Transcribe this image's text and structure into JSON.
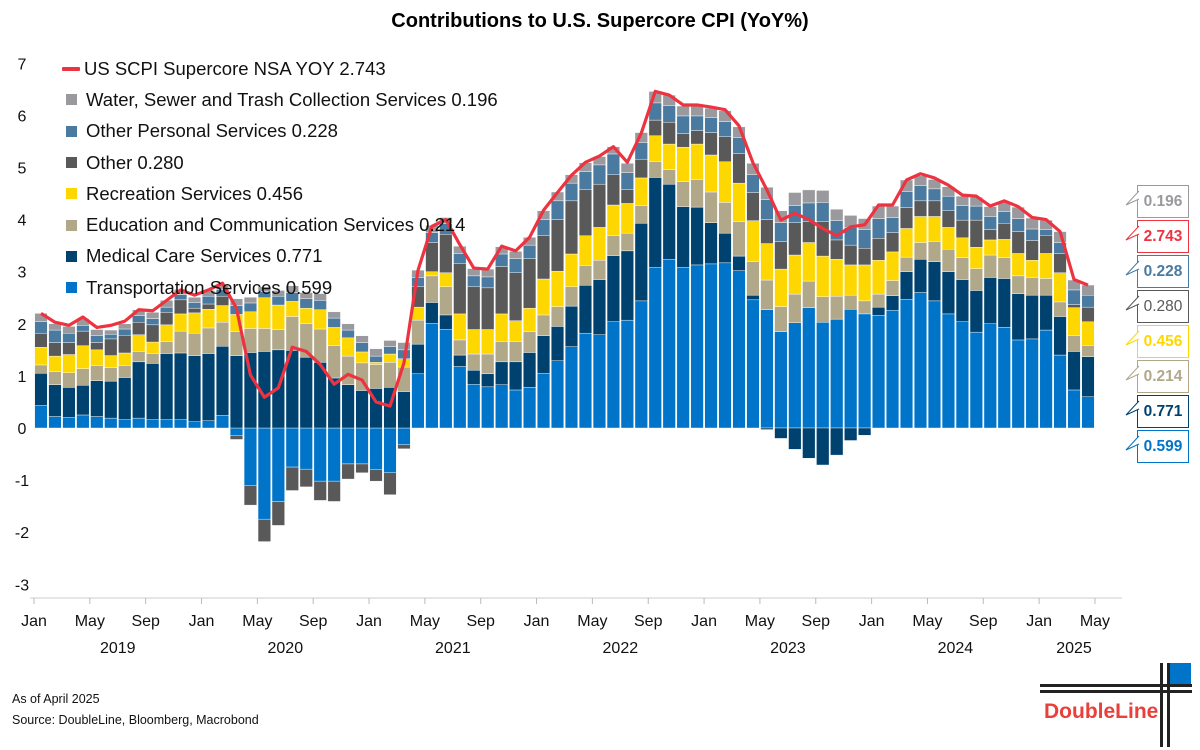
{
  "title": "Contributions to U.S. Supercore CPI (YoY%)",
  "footnote_asof": "As of April 2025",
  "footnote_source": "Source: DoubleLine, Bloomberg, Macrobond",
  "logo_text": "DoubleLine",
  "chart_data": {
    "type": "bar",
    "stacked": true,
    "title": "Contributions to U.S. Supercore CPI (YoY%)",
    "xlabel": "",
    "ylabel": "",
    "ylim": [
      -3,
      7
    ],
    "y_ticks": [
      "7",
      "6",
      "5",
      "4",
      "3",
      "2",
      "1",
      "0",
      "-1",
      "-2",
      "-3"
    ],
    "x_start": "2019-01",
    "x_end": "2025-04",
    "x_ticks": [
      {
        "month_index": 0,
        "label": "Jan"
      },
      {
        "month_index": 4,
        "label": "May"
      },
      {
        "month_index": 8,
        "label": "Sep"
      },
      {
        "month_index": 12,
        "label": "Jan"
      },
      {
        "month_index": 16,
        "label": "May"
      },
      {
        "month_index": 20,
        "label": "Sep"
      },
      {
        "month_index": 24,
        "label": "Jan"
      },
      {
        "month_index": 28,
        "label": "May"
      },
      {
        "month_index": 32,
        "label": "Sep"
      },
      {
        "month_index": 36,
        "label": "Jan"
      },
      {
        "month_index": 40,
        "label": "May"
      },
      {
        "month_index": 44,
        "label": "Sep"
      },
      {
        "month_index": 48,
        "label": "Jan"
      },
      {
        "month_index": 52,
        "label": "May"
      },
      {
        "month_index": 56,
        "label": "Sep"
      },
      {
        "month_index": 60,
        "label": "Jan"
      },
      {
        "month_index": 64,
        "label": "May"
      },
      {
        "month_index": 68,
        "label": "Sep"
      },
      {
        "month_index": 72,
        "label": "Jan"
      },
      {
        "month_index": 76,
        "label": "May"
      }
    ],
    "year_labels": [
      {
        "center_month_index": 5.5,
        "label": "2019"
      },
      {
        "center_month_index": 17.5,
        "label": "2020"
      },
      {
        "center_month_index": 29.5,
        "label": "2021"
      },
      {
        "center_month_index": 41.5,
        "label": "2022"
      },
      {
        "center_month_index": 53.5,
        "label": "2023"
      },
      {
        "center_month_index": 65.5,
        "label": "2024"
      },
      {
        "center_month_index": 74,
        "label": "2025"
      }
    ],
    "legend_position": "top-left",
    "line": {
      "name": "US SCPI Supercore NSA YOY",
      "latest": "2.743",
      "legend_label": "US SCPI Supercore NSA YOY 2.743",
      "color": "#ee3340",
      "values": [
        2.2,
        2.03,
        1.97,
        2.13,
        1.93,
        1.97,
        2.05,
        2.27,
        2.25,
        2.45,
        2.65,
        2.55,
        2.65,
        2.78,
        2.3,
        1.02,
        0.59,
        0.77,
        1.55,
        1.47,
        1.22,
        0.84,
        1.03,
        0.92,
        0.5,
        0.42,
        1.25,
        3.02,
        3.87,
        4.0,
        3.52,
        3.07,
        3.05,
        3.49,
        3.4,
        3.66,
        4.18,
        4.52,
        4.85,
        5.1,
        5.22,
        5.4,
        5.1,
        5.66,
        6.46,
        6.39,
        6.2,
        6.2,
        6.16,
        6.11,
        5.8,
        5.09,
        4.57,
        3.99,
        4.12,
        4.0,
        3.83,
        3.69,
        3.86,
        3.9,
        4.28,
        4.28,
        4.76,
        4.88,
        4.8,
        4.66,
        4.47,
        4.45,
        4.26,
        4.36,
        4.25,
        4.04,
        4.0,
        3.77,
        2.85,
        2.743
      ]
    },
    "series": [
      {
        "name": "Transportation Services",
        "latest": "0.599",
        "legend_label": "Transportation Services 0.599",
        "color": "#0074c8",
        "values": [
          0.43,
          0.22,
          0.2,
          0.25,
          0.22,
          0.19,
          0.16,
          0.19,
          0.16,
          0.16,
          0.16,
          0.12,
          0.14,
          0.24,
          -0.15,
          -1.1,
          -1.75,
          -1.41,
          -0.75,
          -0.79,
          -1.02,
          -1.02,
          -0.69,
          -0.69,
          -0.8,
          -0.86,
          -0.32,
          1.04,
          2.01,
          1.89,
          1.18,
          0.84,
          0.79,
          0.83,
          0.73,
          0.78,
          1.05,
          1.29,
          1.56,
          1.82,
          1.79,
          2.04,
          2.07,
          2.44,
          3.08,
          3.24,
          3.08,
          3.13,
          3.15,
          3.17,
          3.02,
          2.46,
          2.27,
          1.85,
          2.02,
          2.31,
          2.03,
          2.09,
          2.28,
          2.19,
          2.16,
          2.26,
          2.47,
          2.6,
          2.44,
          2.19,
          2.04,
          1.84,
          2.0,
          1.93,
          1.69,
          1.71,
          1.88,
          1.4,
          0.73,
          0.599
        ]
      },
      {
        "name": "Medical Care Services",
        "latest": "0.771",
        "legend_label": "Medical Care Services 0.771",
        "color": "#00426f",
        "values": [
          0.62,
          0.61,
          0.58,
          0.57,
          0.69,
          0.71,
          0.81,
          1.08,
          1.08,
          1.27,
          1.28,
          1.27,
          1.29,
          1.33,
          1.39,
          1.45,
          1.47,
          1.5,
          1.49,
          1.36,
          1.26,
          0.96,
          0.83,
          0.72,
          0.76,
          0.78,
          0.7,
          0.57,
          0.4,
          0.28,
          0.22,
          0.27,
          0.25,
          0.44,
          0.54,
          0.67,
          0.72,
          0.66,
          0.78,
          0.92,
          1.06,
          1.27,
          1.33,
          1.49,
          1.73,
          1.44,
          1.17,
          1.11,
          0.79,
          0.57,
          0.28,
          0.09,
          -0.03,
          -0.2,
          -0.41,
          -0.58,
          -0.71,
          -0.52,
          -0.24,
          -0.14,
          0.16,
          0.28,
          0.53,
          0.64,
          0.75,
          0.81,
          0.81,
          0.8,
          0.89,
          0.94,
          0.89,
          0.84,
          0.67,
          0.74,
          0.74,
          0.771
        ]
      },
      {
        "name": "Education and Communication Services",
        "latest": "0.214",
        "legend_label": "Education and Communication Services 0.214",
        "color": "#b1a789",
        "values": [
          0.16,
          0.25,
          0.28,
          0.32,
          0.29,
          0.26,
          0.23,
          0.2,
          0.19,
          0.23,
          0.42,
          0.43,
          0.49,
          0.46,
          0.46,
          0.46,
          0.44,
          0.39,
          0.65,
          0.64,
          0.64,
          0.62,
          0.55,
          0.53,
          0.46,
          0.48,
          0.47,
          0.46,
          0.51,
          0.54,
          0.29,
          0.31,
          0.38,
          0.39,
          0.39,
          0.4,
          0.4,
          0.38,
          0.37,
          0.38,
          0.37,
          0.38,
          0.34,
          0.34,
          0.3,
          0.28,
          0.48,
          0.53,
          0.59,
          0.59,
          0.66,
          0.64,
          0.57,
          0.48,
          0.55,
          0.51,
          0.49,
          0.44,
          0.27,
          0.25,
          0.25,
          0.29,
          0.28,
          0.32,
          0.39,
          0.43,
          0.42,
          0.42,
          0.43,
          0.4,
          0.34,
          0.34,
          0.32,
          0.28,
          0.3,
          0.214
        ]
      },
      {
        "name": "Recreation Services",
        "latest": "0.456",
        "legend_label": "Recreation Services 0.456",
        "color": "#ffd700",
        "values": [
          0.34,
          0.3,
          0.35,
          0.44,
          0.3,
          0.23,
          0.24,
          0.32,
          0.22,
          0.32,
          0.33,
          0.39,
          0.36,
          0.32,
          0.33,
          0.32,
          0.59,
          0.47,
          0.29,
          0.3,
          0.37,
          0.35,
          0.35,
          0.21,
          0.04,
          0.16,
          0.16,
          0.25,
          0.08,
          0.27,
          0.5,
          0.47,
          0.47,
          0.53,
          0.4,
          0.45,
          0.69,
          0.68,
          0.63,
          0.57,
          0.63,
          0.59,
          0.57,
          0.53,
          0.5,
          0.49,
          0.66,
          0.68,
          0.71,
          0.78,
          0.74,
          0.79,
          0.7,
          0.72,
          0.75,
          0.74,
          0.78,
          0.71,
          0.58,
          0.69,
          0.65,
          0.55,
          0.55,
          0.5,
          0.48,
          0.42,
          0.38,
          0.41,
          0.29,
          0.35,
          0.43,
          0.33,
          0.48,
          0.56,
          0.54,
          0.456
        ]
      },
      {
        "name": "Other",
        "latest": "0.280",
        "legend_label": "Other 0.280",
        "color": "#595959",
        "values": [
          0.27,
          0.26,
          0.23,
          0.28,
          0.14,
          0.32,
          0.34,
          0.24,
          0.33,
          0.24,
          0.27,
          0.09,
          0.1,
          0.18,
          -0.07,
          -0.38,
          -0.43,
          -0.46,
          -0.45,
          -0.34,
          -0.37,
          -0.39,
          -0.29,
          -0.17,
          -0.22,
          -0.42,
          -0.08,
          0.39,
          0.56,
          0.74,
          0.97,
          0.82,
          0.8,
          0.91,
          0.92,
          0.95,
          0.83,
          0.99,
          1.02,
          0.89,
          0.83,
          0.58,
          0.27,
          0.36,
          0.3,
          0.42,
          0.26,
          0.26,
          0.43,
          0.48,
          0.57,
          0.54,
          0.46,
          0.53,
          0.62,
          0.4,
          0.66,
          0.37,
          0.38,
          0.32,
          0.42,
          0.37,
          0.4,
          0.3,
          0.3,
          0.32,
          0.34,
          0.52,
          0.2,
          0.31,
          0.42,
          0.38,
          0.35,
          0.37,
          0.06,
          0.28
        ]
      },
      {
        "name": "Other Personal Services",
        "latest": "0.228",
        "legend_label": "Other Personal Services 0.228",
        "color": "#4a7aa0",
        "values": [
          0.22,
          0.24,
          0.18,
          0.11,
          0.13,
          0.09,
          0.12,
          0.13,
          0.12,
          0.1,
          0.1,
          0.11,
          0.15,
          0.13,
          0.17,
          0.17,
          0.12,
          0.17,
          0.17,
          0.18,
          0.18,
          0.18,
          0.15,
          0.18,
          0.12,
          0.14,
          0.17,
          0.18,
          0.19,
          0.2,
          0.19,
          0.21,
          0.21,
          0.24,
          0.27,
          0.26,
          0.31,
          0.36,
          0.34,
          0.34,
          0.37,
          0.4,
          0.32,
          0.32,
          0.33,
          0.32,
          0.34,
          0.28,
          0.29,
          0.29,
          0.3,
          0.34,
          0.38,
          0.36,
          0.33,
          0.36,
          0.37,
          0.37,
          0.34,
          0.36,
          0.38,
          0.29,
          0.31,
          0.29,
          0.23,
          0.28,
          0.28,
          0.27,
          0.25,
          0.22,
          0.25,
          0.22,
          0.11,
          0.21,
          0.28,
          0.228
        ]
      },
      {
        "name": "Water, Sewer and Trash Collection Services",
        "latest": "0.196",
        "legend_label": "Water, Sewer and Trash Collection Services 0.196",
        "color": "#9a9a9e",
        "values": [
          0.16,
          0.12,
          0.13,
          0.13,
          0.12,
          0.08,
          0.1,
          0.11,
          0.12,
          0.13,
          0.1,
          0.1,
          0.11,
          0.08,
          0.13,
          0.11,
          0.09,
          0.11,
          0.13,
          0.12,
          0.13,
          0.12,
          0.12,
          0.13,
          0.14,
          0.12,
          0.14,
          0.14,
          0.14,
          0.12,
          0.14,
          0.14,
          0.15,
          0.14,
          0.14,
          0.15,
          0.17,
          0.17,
          0.16,
          0.17,
          0.16,
          0.14,
          0.18,
          0.19,
          0.22,
          0.2,
          0.19,
          0.19,
          0.18,
          0.21,
          0.21,
          0.22,
          0.24,
          0.23,
          0.25,
          0.25,
          0.23,
          0.22,
          0.23,
          0.21,
          0.24,
          0.22,
          0.22,
          0.19,
          0.18,
          0.18,
          0.18,
          0.17,
          0.19,
          0.18,
          0.22,
          0.21,
          0.18,
          0.21,
          0.19,
          0.196
        ]
      }
    ]
  }
}
